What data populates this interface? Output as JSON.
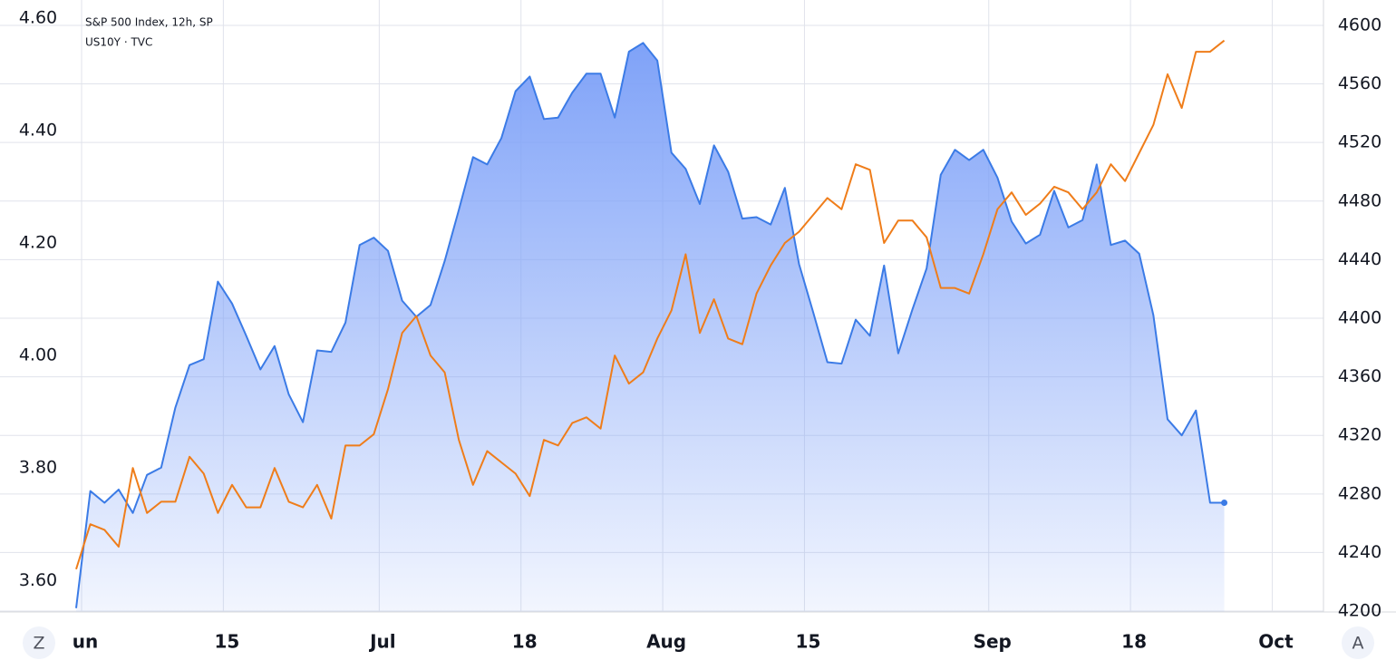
{
  "chart_data": {
    "type": "line",
    "legend": [
      "S&P 500 Index, 12h, SP",
      "US10Y · TVC"
    ],
    "buttons": {
      "left": "Z",
      "right": "A"
    },
    "categories": [
      "un",
      null,
      null,
      null,
      null,
      null,
      null,
      null,
      null,
      null,
      "15",
      null,
      null,
      null,
      null,
      null,
      null,
      null,
      null,
      null,
      null,
      "Jul",
      null,
      null,
      null,
      null,
      null,
      null,
      null,
      null,
      null,
      "18",
      null,
      null,
      null,
      null,
      null,
      null,
      null,
      null,
      null,
      "Aug",
      null,
      null,
      null,
      null,
      null,
      null,
      null,
      null,
      null,
      "15",
      null,
      null,
      null,
      null,
      null,
      null,
      null,
      null,
      null,
      null,
      null,
      null,
      "Sep",
      null,
      null,
      null,
      null,
      null,
      null,
      null,
      null,
      null,
      "18",
      null,
      null,
      null,
      null,
      null,
      null,
      null,
      null,
      null,
      "Oct",
      null,
      null,
      null,
      null
    ],
    "series": [
      {
        "name": "S&P 500 Index, 12h, SP",
        "axis": "y2",
        "color": "#3b7be6",
        "fill": "#7fa2f8",
        "values": [
          4202,
          4282,
          4274,
          4283,
          4267,
          4293,
          4298,
          4339,
          4368,
          4372,
          4425,
          4410,
          4388,
          4365,
          4381,
          4348,
          4329,
          4378,
          4377,
          4397,
          4450,
          4455,
          4446,
          4412,
          4401,
          4409,
          4439,
          4474,
          4510,
          4505,
          4523,
          4555,
          4565,
          4536,
          4537,
          4554,
          4567,
          4567,
          4537,
          4582,
          4588,
          4576,
          4513,
          4502,
          4478,
          4518,
          4500,
          4468,
          4469,
          4464,
          4489,
          4437,
          4404,
          4370,
          4369,
          4399,
          4388,
          4436,
          4376,
          4406,
          4434,
          4498,
          4515,
          4508,
          4515,
          4496,
          4466,
          4451,
          4457,
          4487,
          4462,
          4467,
          4505,
          4450,
          4453,
          4444,
          4402,
          4331,
          4320,
          4337,
          4274,
          4274,
          null,
          null,
          null,
          null,
          null,
          null,
          null
        ]
      },
      {
        "name": "US10Y · TVC",
        "axis": "y",
        "color": "#ef7d1a",
        "values": [
          3.62,
          3.7,
          3.69,
          3.66,
          3.8,
          3.72,
          3.74,
          3.74,
          3.82,
          3.79,
          3.72,
          3.77,
          3.73,
          3.73,
          3.8,
          3.74,
          3.73,
          3.77,
          3.71,
          3.84,
          3.84,
          3.86,
          3.94,
          4.04,
          4.07,
          4.0,
          3.97,
          3.85,
          3.77,
          3.83,
          3.81,
          3.79,
          3.75,
          3.85,
          3.84,
          3.88,
          3.89,
          3.87,
          4.0,
          3.95,
          3.97,
          4.03,
          4.08,
          4.18,
          4.04,
          4.1,
          4.03,
          4.02,
          4.11,
          4.16,
          4.2,
          4.22,
          4.25,
          4.28,
          4.26,
          4.34,
          4.33,
          4.2,
          4.24,
          4.24,
          4.21,
          4.12,
          4.12,
          4.11,
          4.18,
          4.26,
          4.29,
          4.25,
          4.27,
          4.3,
          4.29,
          4.26,
          4.29,
          4.34,
          4.31,
          4.36,
          4.41,
          4.5,
          4.44,
          4.54,
          4.54,
          4.56,
          null,
          null,
          null,
          null,
          null,
          null,
          null
        ]
      }
    ],
    "ylim": [
      3.544,
      4.632
    ],
    "yticks": [
      {
        "value": 3.6,
        "label": "3.60"
      },
      {
        "value": 3.8,
        "label": "3.80"
      },
      {
        "value": 4.0,
        "label": "4.00"
      },
      {
        "value": 4.2,
        "label": "4.20"
      },
      {
        "value": 4.4,
        "label": "4.40"
      },
      {
        "value": 4.6,
        "label": "4.60"
      }
    ],
    "y2lim": [
      4199.4,
      4617.3
    ],
    "y2ticks": [
      4200,
      4240,
      4280,
      4320,
      4360,
      4400,
      4440,
      4480,
      4520,
      4560,
      4600
    ],
    "grid": true
  }
}
